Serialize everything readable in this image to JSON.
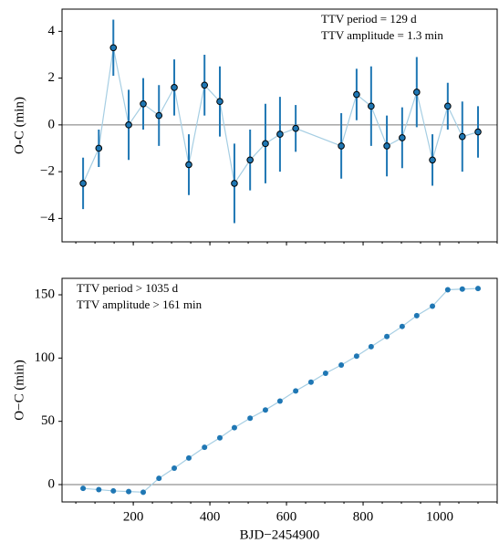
{
  "chart_data": [
    {
      "type": "errorbar",
      "ylabel": "O-C (min)",
      "annotations": [
        "TTV period = 129 d",
        "TTV amplitude = 1.3 min"
      ],
      "x": [
        69,
        110,
        148,
        188,
        226,
        267,
        307,
        345,
        386,
        426,
        464,
        505,
        545,
        583,
        624,
        743,
        783,
        821,
        862,
        902,
        940,
        981,
        1021,
        1059,
        1100
      ],
      "series": [
        {
          "values": [
            -2.5,
            -1.0,
            3.3,
            0.0,
            0.9,
            0.4,
            1.6,
            -1.7,
            1.7,
            1.0,
            -2.5,
            -1.5,
            -0.8,
            -0.4,
            -0.15,
            -0.9,
            1.3,
            0.8,
            -0.9,
            -0.55,
            1.4,
            -1.5,
            0.8,
            -0.5,
            -0.3
          ],
          "errors": [
            1.1,
            0.8,
            1.2,
            1.5,
            1.1,
            1.3,
            1.2,
            1.3,
            1.3,
            1.5,
            1.7,
            1.3,
            1.7,
            1.6,
            1.0,
            1.4,
            1.1,
            1.7,
            1.3,
            1.3,
            1.5,
            1.1,
            1.0,
            1.5,
            1.1
          ],
          "color": "#1f77b4",
          "line_color": "#a6cee3"
        }
      ],
      "xlim": [
        14,
        1150
      ],
      "xticks": [
        200,
        400,
        600,
        800,
        1000
      ],
      "ylim": [
        -5.0,
        4.95
      ],
      "yticks": [
        {
          "value": -4,
          "label": "−4"
        },
        {
          "value": -2,
          "label": "−2"
        },
        0,
        2,
        4
      ],
      "reference_line": 0
    },
    {
      "type": "scatter-line",
      "ylabel": "O−C (min)",
      "xlabel": "BJD−2454900",
      "annotations": [
        "TTV period > 1035 d",
        "TTV amplitude > 161 min"
      ],
      "x": [
        69,
        110,
        148,
        188,
        226,
        267,
        307,
        345,
        386,
        426,
        464,
        505,
        545,
        583,
        624,
        664,
        702,
        743,
        783,
        821,
        862,
        902,
        940,
        981,
        1021,
        1059,
        1100
      ],
      "series": [
        {
          "values": [
            -3,
            -4,
            -5,
            -5.5,
            -6,
            5,
            13,
            21,
            29.5,
            37,
            45,
            52.5,
            59,
            66,
            74,
            81,
            88,
            94.5,
            101.5,
            109,
            117,
            125,
            133.5,
            141,
            154,
            154.5,
            155
          ],
          "color": "#1f77b4",
          "line_color": "#a6cee3"
        }
      ],
      "xlim": [
        14,
        1150
      ],
      "xticks": [
        200,
        400,
        600,
        800,
        1000
      ],
      "ylim": [
        -13.7,
        163
      ],
      "yticks": [
        0,
        50,
        100,
        150
      ],
      "reference_line": 0
    }
  ]
}
